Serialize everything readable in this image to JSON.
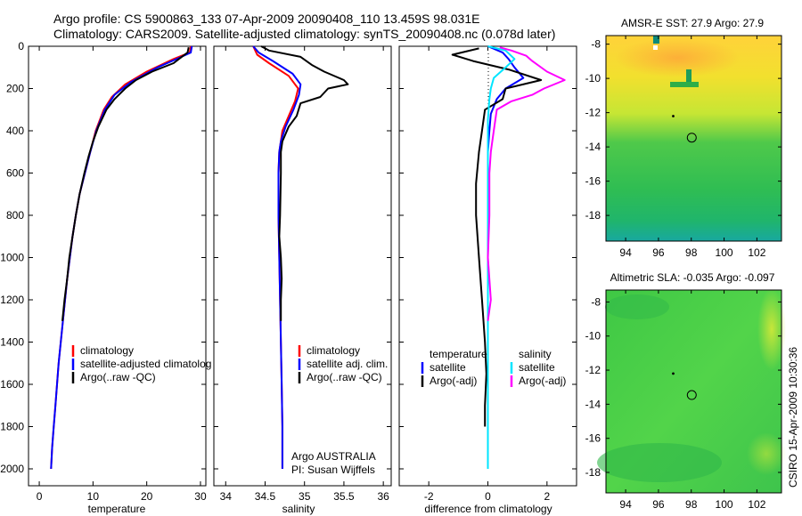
{
  "title": {
    "line1": "Argo profile: CS 5900863_133 07-Apr-2009 20090408_110 13.459S 98.031E",
    "line2": "Climatology: CARS2009. Satellite-adjusted climatology: synTS_20090408.nc (0.078d later)"
  },
  "side_label": "CSIRO 15-Apr-2009 10:30:36",
  "colors": {
    "climatology": "#ff0000",
    "satellite": "#0000ff",
    "argo": "#000000",
    "satellite_sal": "#00e5ff",
    "argo_sal": "#ff00ff"
  },
  "chart_data": [
    {
      "id": "temperature",
      "type": "line",
      "xlabel": "temperature",
      "ylabel": "",
      "xlim": [
        -2,
        31
      ],
      "ylim": [
        2080,
        0
      ],
      "y_reversed": true,
      "xticks": [
        0,
        10,
        20,
        30
      ],
      "yticks": [
        0,
        200,
        400,
        600,
        800,
        1000,
        1200,
        1400,
        1600,
        1800,
        2000
      ],
      "legend": [
        "climatology",
        "satellite-adjusted climatolog",
        "Argo(..raw -QC)"
      ],
      "series": [
        {
          "name": "climatology",
          "color_key": "climatology",
          "points": [
            [
              28.2,
              0
            ],
            [
              28,
              30
            ],
            [
              25,
              60
            ],
            [
              20,
              120
            ],
            [
              16,
              180
            ],
            [
              13.5,
              240
            ],
            [
              12,
              300
            ],
            [
              10.5,
              400
            ],
            [
              9.5,
              500
            ],
            [
              8.5,
              600
            ],
            [
              7.5,
              700
            ],
            [
              6.8,
              800
            ],
            [
              6.2,
              900
            ],
            [
              5.7,
              1000
            ],
            [
              5.2,
              1100
            ],
            [
              4.8,
              1200
            ],
            [
              4.4,
              1300
            ],
            [
              4.0,
              1400
            ],
            [
              3.6,
              1500
            ],
            [
              3.3,
              1600
            ],
            [
              3.0,
              1700
            ],
            [
              2.7,
              1800
            ],
            [
              2.4,
              1900
            ],
            [
              2.2,
              2000
            ]
          ]
        },
        {
          "name": "satellite-adjusted climatolog",
          "color_key": "satellite",
          "points": [
            [
              28.4,
              0
            ],
            [
              28.2,
              30
            ],
            [
              26,
              55
            ],
            [
              22,
              100
            ],
            [
              17,
              170
            ],
            [
              14,
              230
            ],
            [
              12.2,
              300
            ],
            [
              10.6,
              400
            ],
            [
              9.5,
              500
            ],
            [
              8.5,
              600
            ],
            [
              7.5,
              700
            ],
            [
              6.8,
              800
            ],
            [
              6.2,
              900
            ],
            [
              5.7,
              1000
            ],
            [
              5.2,
              1100
            ],
            [
              4.8,
              1200
            ],
            [
              4.4,
              1300
            ],
            [
              4.0,
              1400
            ],
            [
              3.6,
              1500
            ],
            [
              3.3,
              1600
            ],
            [
              3.0,
              1700
            ],
            [
              2.7,
              1800
            ],
            [
              2.4,
              1900
            ],
            [
              2.2,
              2000
            ]
          ]
        },
        {
          "name": "Argo(..raw -QC)",
          "color_key": "argo",
          "points": [
            [
              27.8,
              5
            ],
            [
              27.6,
              30
            ],
            [
              26,
              60
            ],
            [
              25,
              80
            ],
            [
              21,
              120
            ],
            [
              18,
              160
            ],
            [
              16,
              200
            ],
            [
              14,
              250
            ],
            [
              12.5,
              300
            ],
            [
              11,
              380
            ],
            [
              10,
              450
            ],
            [
              9.2,
              520
            ],
            [
              8.4,
              600
            ],
            [
              7.5,
              700
            ],
            [
              6.8,
              800
            ],
            [
              6.2,
              900
            ],
            [
              5.6,
              1000
            ],
            [
              5.2,
              1100
            ],
            [
              4.7,
              1200
            ],
            [
              4.3,
              1300
            ]
          ]
        }
      ]
    },
    {
      "id": "salinity",
      "type": "line",
      "xlabel": "salinity",
      "ylabel": "",
      "xlim": [
        33.85,
        36.1
      ],
      "ylim": [
        2080,
        0
      ],
      "y_reversed": true,
      "xticks": [
        34,
        34.5,
        35,
        35.5,
        36
      ],
      "yticks": [
        0,
        200,
        400,
        600,
        800,
        1000,
        1200,
        1400,
        1600,
        1800,
        2000
      ],
      "legend": [
        "climatology",
        "satellite adj. clim.",
        "Argo(..raw -QC)"
      ],
      "annotation": [
        "Argo AUSTRALIA",
        "PI: Susan Wijffels"
      ],
      "series": [
        {
          "name": "climatology",
          "color_key": "climatology",
          "points": [
            [
              34.35,
              0
            ],
            [
              34.4,
              40
            ],
            [
              34.55,
              80
            ],
            [
              34.8,
              140
            ],
            [
              34.92,
              200
            ],
            [
              34.88,
              260
            ],
            [
              34.8,
              330
            ],
            [
              34.72,
              400
            ],
            [
              34.68,
              500
            ],
            [
              34.67,
              600
            ],
            [
              34.67,
              800
            ],
            [
              34.68,
              1000
            ],
            [
              34.69,
              1200
            ],
            [
              34.7,
              1400
            ],
            [
              34.71,
              1600
            ],
            [
              34.72,
              1800
            ],
            [
              34.72,
              2000
            ]
          ]
        },
        {
          "name": "satellite adj. clim.",
          "color_key": "satellite",
          "points": [
            [
              34.35,
              0
            ],
            [
              34.42,
              30
            ],
            [
              34.6,
              70
            ],
            [
              34.85,
              130
            ],
            [
              34.95,
              180
            ],
            [
              34.93,
              230
            ],
            [
              34.86,
              300
            ],
            [
              34.76,
              380
            ],
            [
              34.7,
              450
            ],
            [
              34.68,
              500
            ],
            [
              34.67,
              600
            ],
            [
              34.67,
              800
            ],
            [
              34.68,
              1000
            ],
            [
              34.69,
              1200
            ],
            [
              34.7,
              1400
            ],
            [
              34.71,
              1600
            ],
            [
              34.72,
              1800
            ],
            [
              34.72,
              2000
            ]
          ]
        },
        {
          "name": "Argo(..raw -QC)",
          "color_key": "argo",
          "points": [
            [
              34.45,
              0
            ],
            [
              34.55,
              20
            ],
            [
              34.95,
              50
            ],
            [
              35.1,
              90
            ],
            [
              35.25,
              120
            ],
            [
              35.5,
              160
            ],
            [
              35.55,
              180
            ],
            [
              35.3,
              200
            ],
            [
              35.2,
              240
            ],
            [
              34.95,
              270
            ],
            [
              34.9,
              330
            ],
            [
              34.8,
              380
            ],
            [
              34.72,
              450
            ],
            [
              34.7,
              500
            ],
            [
              34.7,
              600
            ],
            [
              34.69,
              800
            ],
            [
              34.68,
              900
            ],
            [
              34.7,
              1000
            ],
            [
              34.71,
              1100
            ],
            [
              34.7,
              1200
            ],
            [
              34.7,
              1300
            ]
          ]
        }
      ]
    },
    {
      "id": "difference",
      "type": "line",
      "xlabel": "difference from climatology",
      "ylabel": "",
      "xlim": [
        -3,
        3
      ],
      "ylim": [
        2080,
        0
      ],
      "y_reversed": true,
      "xticks": [
        -2,
        0,
        2
      ],
      "yticks": [
        0,
        200,
        400,
        600,
        800,
        1000,
        1200,
        1400,
        1600,
        1800,
        2000
      ],
      "legend_temperature": [
        "temperature",
        "satellite",
        "Argo(-adj)"
      ],
      "legend_salinity": [
        "salinity",
        "satellite",
        "Argo(-adj)"
      ],
      "series": [
        {
          "name": "temperature satellite",
          "color_key": "satellite",
          "points": [
            [
              0,
              0
            ],
            [
              0.5,
              30
            ],
            [
              0.7,
              60
            ],
            [
              0.9,
              100
            ],
            [
              1.2,
              150
            ],
            [
              0.6,
              200
            ],
            [
              0.3,
              250
            ],
            [
              0.1,
              320
            ],
            [
              0.05,
              400
            ],
            [
              0,
              500
            ],
            [
              0,
              1000
            ],
            [
              0,
              1500
            ],
            [
              0,
              2000
            ]
          ]
        },
        {
          "name": "temperature Argo(-adj)",
          "color_key": "argo",
          "points": [
            [
              -0.3,
              10
            ],
            [
              -1.2,
              40
            ],
            [
              -0.5,
              70
            ],
            [
              0.7,
              110
            ],
            [
              1.8,
              160
            ],
            [
              0.6,
              200
            ],
            [
              0.5,
              250
            ],
            [
              -0.1,
              300
            ],
            [
              -0.2,
              400
            ],
            [
              -0.3,
              500
            ],
            [
              -0.4,
              650
            ],
            [
              -0.4,
              800
            ],
            [
              -0.3,
              1000
            ],
            [
              -0.2,
              1200
            ],
            [
              -0.1,
              1400
            ],
            [
              -0.05,
              1550
            ],
            [
              -0.1,
              1700
            ],
            [
              -0.1,
              1800
            ]
          ]
        },
        {
          "name": "salinity satellite",
          "color_key": "satellite_sal",
          "points": [
            [
              0,
              0
            ],
            [
              0.6,
              20
            ],
            [
              0.9,
              60
            ],
            [
              0.6,
              100
            ],
            [
              0.2,
              150
            ],
            [
              0.1,
              200
            ],
            [
              0.05,
              250
            ],
            [
              0,
              350
            ],
            [
              0,
              500
            ],
            [
              0,
              1000
            ],
            [
              0,
              1500
            ],
            [
              0,
              2000
            ]
          ]
        },
        {
          "name": "salinity Argo(-adj)",
          "color_key": "argo_sal",
          "points": [
            [
              0.4,
              5
            ],
            [
              0.8,
              20
            ],
            [
              1.3,
              45
            ],
            [
              1.5,
              70
            ],
            [
              2.0,
              120
            ],
            [
              2.6,
              160
            ],
            [
              1.9,
              200
            ],
            [
              1.5,
              230
            ],
            [
              0.8,
              260
            ],
            [
              0.3,
              300
            ],
            [
              0.2,
              400
            ],
            [
              0.1,
              500
            ],
            [
              0.05,
              600
            ],
            [
              0.05,
              800
            ],
            [
              0,
              1000
            ],
            [
              0.1,
              1200
            ],
            [
              0,
              1300
            ]
          ]
        }
      ]
    },
    {
      "id": "sst_map",
      "type": "heatmap",
      "title": "AMSR-E SST: 27.9 Argo: 27.9",
      "xlim": [
        92.8,
        103.5
      ],
      "ylim": [
        -19.5,
        -7.5
      ],
      "xticks": [
        94,
        96,
        98,
        100,
        102
      ],
      "yticks": [
        -8,
        -10,
        -12,
        -14,
        -16,
        -18
      ],
      "markers": [
        {
          "kind": "circle",
          "x": 98.03,
          "y": -13.46
        },
        {
          "kind": "dot",
          "x": 96.9,
          "y": -12.2
        }
      ]
    },
    {
      "id": "sla_map",
      "type": "heatmap",
      "title": "Altimetric SLA: -0.035 Argo: -0.097",
      "xlim": [
        92.8,
        103.5
      ],
      "ylim": [
        -19.2,
        -7.3
      ],
      "xticks": [
        94,
        96,
        98,
        100,
        102
      ],
      "yticks": [
        -8,
        -10,
        -12,
        -14,
        -16,
        -18
      ],
      "markers": [
        {
          "kind": "circle",
          "x": 98.03,
          "y": -13.46
        },
        {
          "kind": "dot",
          "x": 96.9,
          "y": -12.2
        }
      ]
    }
  ]
}
